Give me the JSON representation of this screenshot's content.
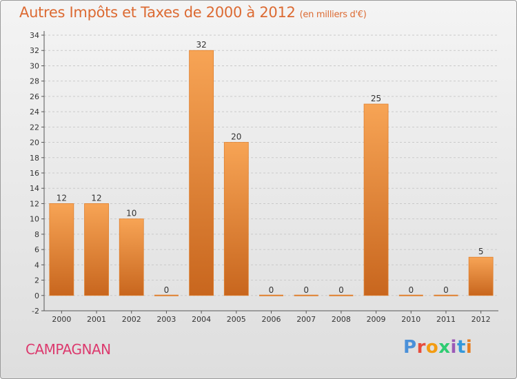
{
  "chart_data": {
    "type": "bar",
    "title": "Autres Impôts et Taxes de 2000 à 2012",
    "subtitle": "(en milliers d'€)",
    "categories": [
      "2000",
      "2001",
      "2002",
      "2003",
      "2004",
      "2005",
      "2006",
      "2007",
      "2008",
      "2009",
      "2010",
      "2011",
      "2012"
    ],
    "values": [
      12,
      12,
      10,
      0,
      32,
      20,
      0,
      0,
      0,
      25,
      0,
      0,
      5
    ],
    "ylim": [
      -2,
      34
    ],
    "yticks": [
      -2,
      0,
      2,
      4,
      6,
      8,
      10,
      12,
      14,
      16,
      18,
      20,
      22,
      24,
      26,
      28,
      30,
      32,
      34
    ],
    "xlabel": "",
    "ylabel": "",
    "grid": true,
    "bar_color": "#f0913f"
  },
  "commune": "CAMPAGNAN",
  "logo": {
    "letters": [
      "P",
      "r",
      "o",
      "x",
      "i",
      "t",
      "i"
    ],
    "colors": [
      "#4a90d9",
      "#e74c3c",
      "#f39c12",
      "#2ecc71",
      "#9b59b6",
      "#3498db",
      "#e67e22"
    ]
  }
}
